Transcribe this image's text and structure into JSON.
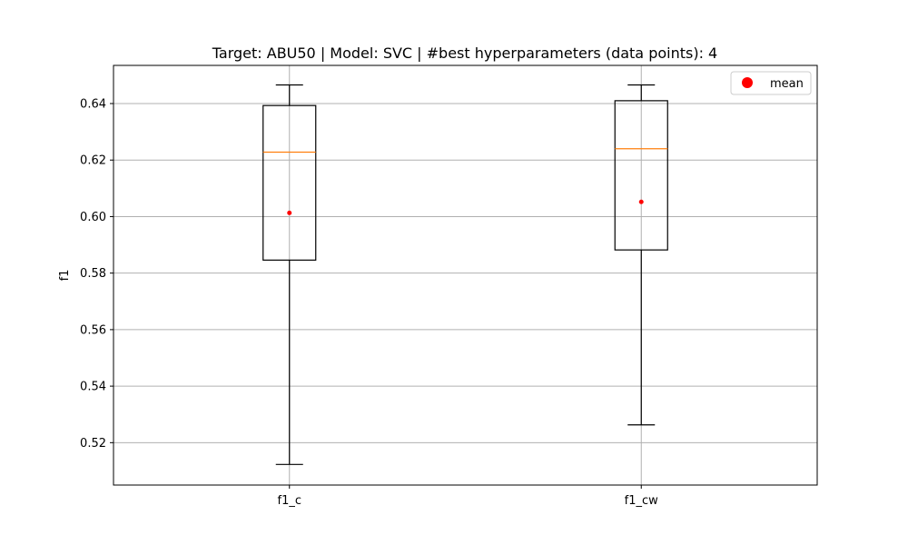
{
  "chart_data": {
    "type": "box",
    "title": "Target: ABU50 | Model: SVC | #best hyperparameters (data points): 4",
    "xlabel": "",
    "ylabel": "f1",
    "ylim": [
      0.505,
      0.6535
    ],
    "yticks": [
      0.52,
      0.54,
      0.56,
      0.58,
      0.6,
      0.62,
      0.64
    ],
    "grid": true,
    "legend": {
      "placement": "top-right",
      "entries": [
        {
          "label": "mean",
          "color": "#ff0000",
          "marker": "circle"
        }
      ]
    },
    "categories": [
      "f1_c",
      "f1_cw"
    ],
    "boxes": [
      {
        "category": "f1_c",
        "whisker_low": 0.5123,
        "q1": 0.5846,
        "median": 0.6228,
        "q3": 0.6393,
        "whisker_high": 0.6466,
        "mean": 0.6013
      },
      {
        "category": "f1_cw",
        "whisker_low": 0.5263,
        "q1": 0.5882,
        "median": 0.624,
        "q3": 0.641,
        "whisker_high": 0.6466,
        "mean": 0.6052
      }
    ],
    "colors": {
      "box": "#000000",
      "median": "#ff7f0e",
      "mean": "#ff0000",
      "grid": "#b0b0b0"
    }
  }
}
